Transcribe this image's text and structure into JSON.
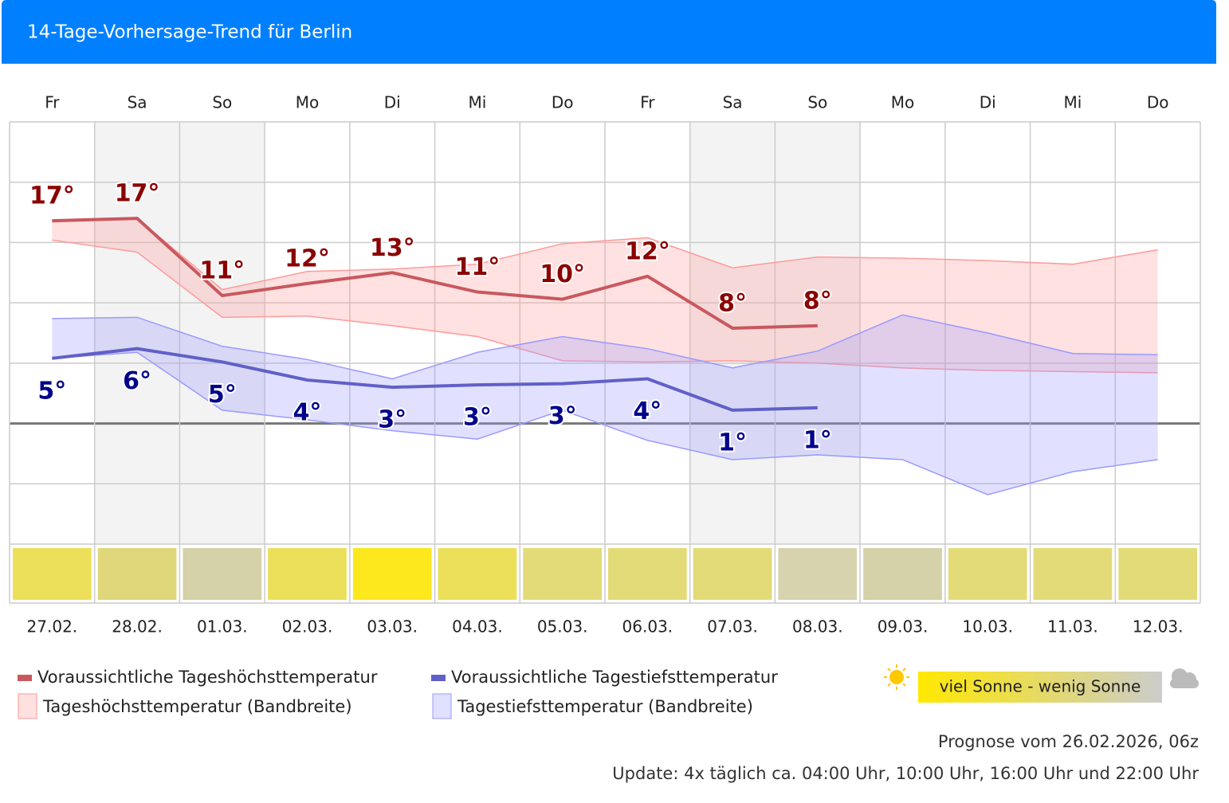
{
  "header": {
    "title": "14-Tage-Vorhersage-Trend für Berlin"
  },
  "chart_data": {
    "type": "line",
    "categories": [
      "Fr",
      "Sa",
      "So",
      "Mo",
      "Di",
      "Mi",
      "Do",
      "Fr",
      "Sa",
      "So",
      "Mo",
      "Di",
      "Mi",
      "Do"
    ],
    "dates": [
      "27.02.",
      "28.02.",
      "01.03.",
      "02.03.",
      "03.03.",
      "04.03.",
      "05.03.",
      "06.03.",
      "07.03.",
      "08.03.",
      "09.03.",
      "10.03.",
      "11.03.",
      "12.03."
    ],
    "ylim": [
      -10,
      25
    ],
    "yticks": [
      -10,
      -5,
      0,
      5,
      10,
      15,
      20,
      25
    ],
    "grid": true,
    "bands": [
      {
        "name": "Tageshöchsttemperatur (Bandbreite)",
        "color": "#ff9a9a",
        "upper": [
          16.7,
          17.0,
          11.1,
          12.6,
          12.8,
          13.2,
          14.9,
          15.4,
          12.9,
          13.8,
          13.7,
          13.5,
          13.2,
          14.4
        ],
        "lower": [
          15.2,
          14.2,
          8.8,
          8.9,
          8.1,
          7.2,
          5.2,
          5.1,
          5.2,
          5.0,
          4.6,
          4.4,
          4.3,
          4.2
        ]
      },
      {
        "name": "Tagestiefsttemperatur (Bandbreite)",
        "color": "#9a9aff",
        "upper": [
          8.7,
          8.8,
          6.4,
          5.3,
          3.7,
          5.9,
          7.2,
          6.2,
          4.6,
          6.0,
          9.0,
          7.5,
          5.8,
          5.7
        ],
        "lower": [
          5.4,
          5.9,
          1.1,
          0.3,
          -0.6,
          -1.3,
          1.1,
          -1.4,
          -3.0,
          -2.6,
          -3.0,
          -5.9,
          -4.0,
          -3.0
        ]
      }
    ],
    "series": [
      {
        "name": "Voraussichtliche Tageshöchsttemperatur",
        "color": "#c8585e",
        "label_color": "#8b0000",
        "values": [
          16.8,
          17.0,
          10.6,
          11.6,
          12.5,
          10.9,
          10.3,
          12.2,
          7.9,
          8.1,
          null,
          null,
          null,
          null
        ],
        "value_labels": [
          "17°",
          "17°",
          "11°",
          "12°",
          "13°",
          "11°",
          "10°",
          "12°",
          "8°",
          "8°",
          null,
          null,
          null,
          null
        ]
      },
      {
        "name": "Voraussichtliche Tagestiefsttemperatur",
        "color": "#6060c8",
        "label_color": "#00008b",
        "values": [
          5.4,
          6.2,
          5.1,
          3.6,
          3.0,
          3.2,
          3.3,
          3.7,
          1.1,
          1.3,
          null,
          null,
          null,
          null
        ],
        "value_labels": [
          "5°",
          "6°",
          "5°",
          "4°",
          "3°",
          "3°",
          "3°",
          "4°",
          "1°",
          "1°",
          null,
          null,
          null,
          null
        ]
      }
    ],
    "sun_colors": [
      "#ece05a",
      "#e0d77a",
      "#d5d1a8",
      "#ece05a",
      "#fce81c",
      "#ece05a",
      "#e2db78",
      "#e2db78",
      "#e2db78",
      "#d7d3ae",
      "#d5d1a8",
      "#e2db78",
      "#e2db78",
      "#e2db78"
    ],
    "sun_legend": "viel Sonne - wenig Sonne"
  },
  "footer": {
    "forecast": "Prognose vom 26.02.2026, 06z",
    "update": "Update: 4x täglich ca. 04:00 Uhr, 10:00 Uhr, 16:00 Uhr und 22:00 Uhr"
  }
}
